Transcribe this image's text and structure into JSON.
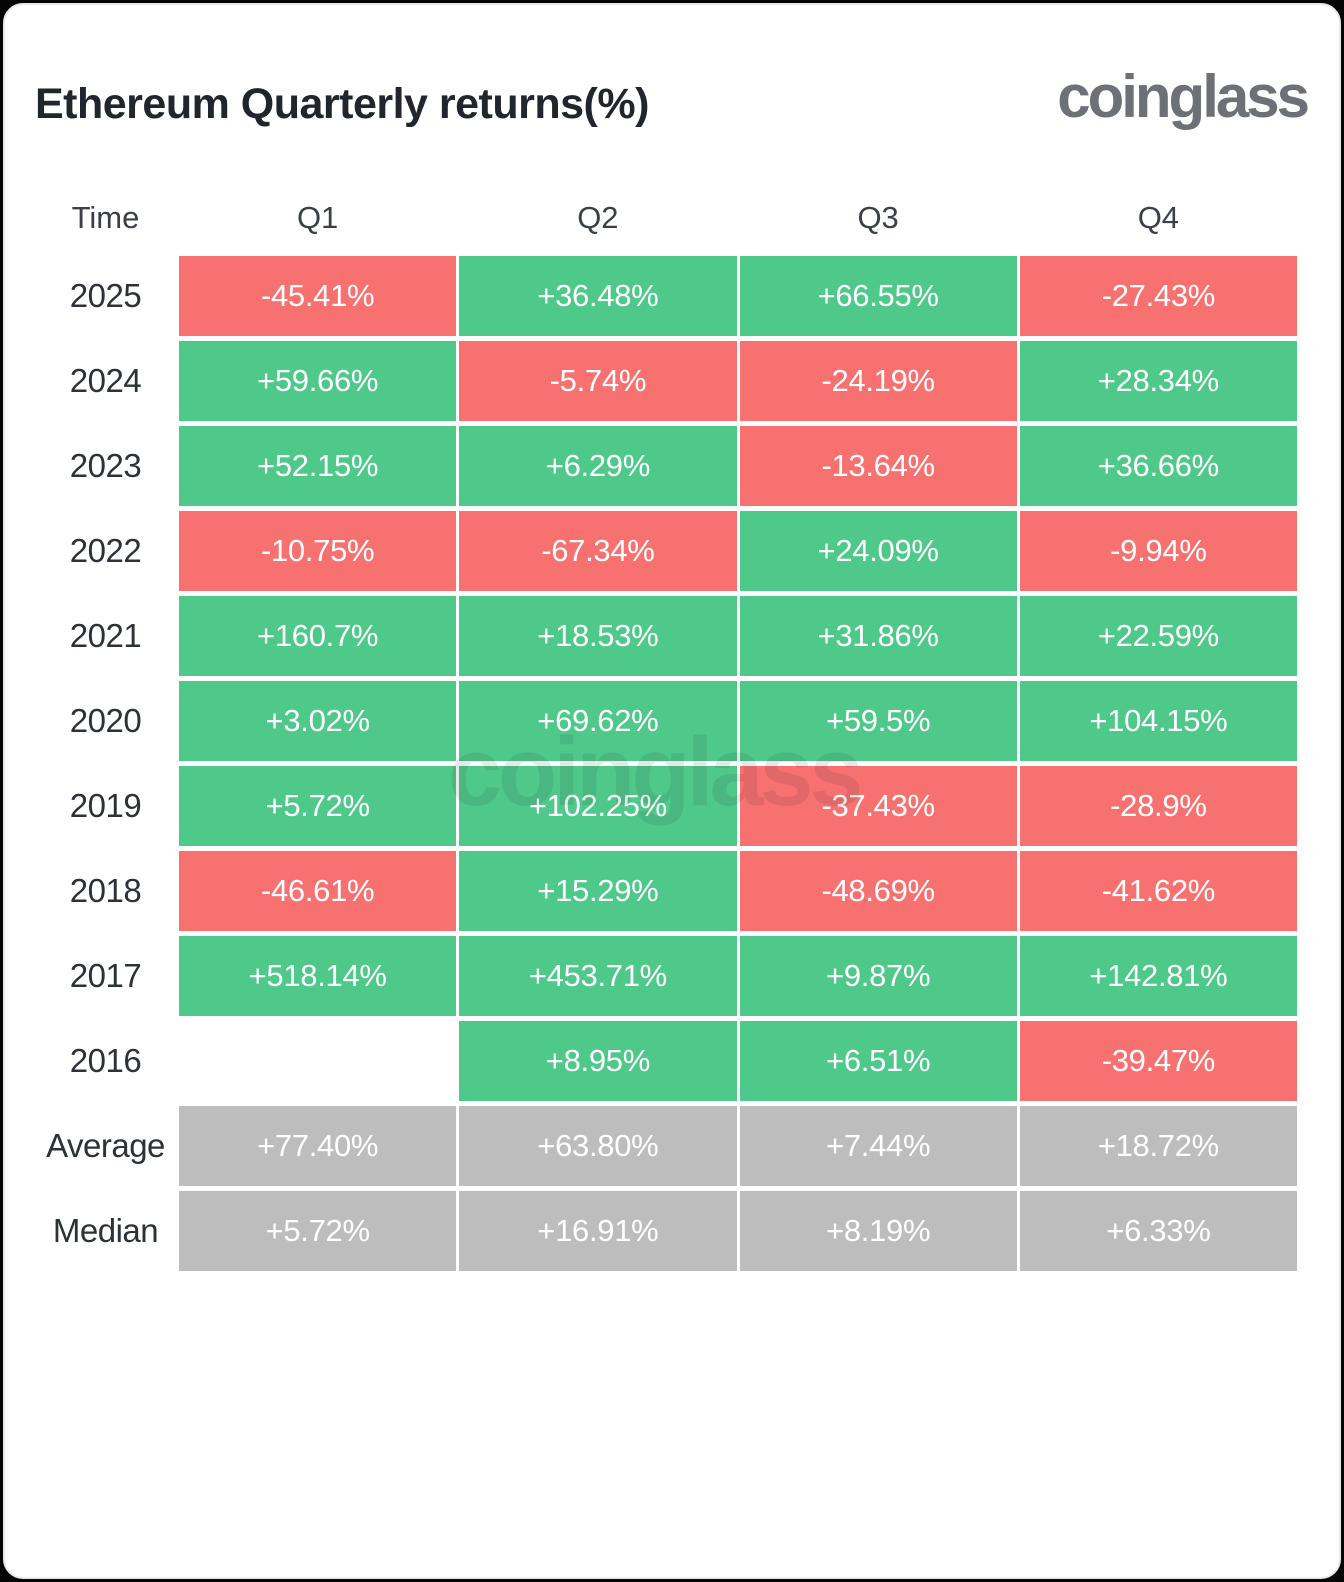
{
  "header": {
    "title": "Ethereum Quarterly returns(%)",
    "logo": "coinglass"
  },
  "watermark": "coinglass",
  "colors": {
    "pos": "#4fc98a",
    "neg": "#f77170",
    "stat": "#bdbdbd",
    "title_text": "#21262e",
    "logo_text": "#6d7177",
    "cell_text": "#ffffff"
  },
  "table": {
    "columns": [
      "Time",
      "Q1",
      "Q2",
      "Q3",
      "Q4"
    ],
    "rows": [
      {
        "label": "2025",
        "cells": [
          {
            "text": "-45.41%",
            "type": "neg"
          },
          {
            "text": "+36.48%",
            "type": "pos"
          },
          {
            "text": "+66.55%",
            "type": "pos"
          },
          {
            "text": "-27.43%",
            "type": "neg"
          }
        ]
      },
      {
        "label": "2024",
        "cells": [
          {
            "text": "+59.66%",
            "type": "pos"
          },
          {
            "text": "-5.74%",
            "type": "neg"
          },
          {
            "text": "-24.19%",
            "type": "neg"
          },
          {
            "text": "+28.34%",
            "type": "pos"
          }
        ]
      },
      {
        "label": "2023",
        "cells": [
          {
            "text": "+52.15%",
            "type": "pos"
          },
          {
            "text": "+6.29%",
            "type": "pos"
          },
          {
            "text": "-13.64%",
            "type": "neg"
          },
          {
            "text": "+36.66%",
            "type": "pos"
          }
        ]
      },
      {
        "label": "2022",
        "cells": [
          {
            "text": "-10.75%",
            "type": "neg"
          },
          {
            "text": "-67.34%",
            "type": "neg"
          },
          {
            "text": "+24.09%",
            "type": "pos"
          },
          {
            "text": "-9.94%",
            "type": "neg"
          }
        ]
      },
      {
        "label": "2021",
        "cells": [
          {
            "text": "+160.7%",
            "type": "pos"
          },
          {
            "text": "+18.53%",
            "type": "pos"
          },
          {
            "text": "+31.86%",
            "type": "pos"
          },
          {
            "text": "+22.59%",
            "type": "pos"
          }
        ]
      },
      {
        "label": "2020",
        "cells": [
          {
            "text": "+3.02%",
            "type": "pos"
          },
          {
            "text": "+69.62%",
            "type": "pos"
          },
          {
            "text": "+59.5%",
            "type": "pos"
          },
          {
            "text": "+104.15%",
            "type": "pos"
          }
        ]
      },
      {
        "label": "2019",
        "cells": [
          {
            "text": "+5.72%",
            "type": "pos"
          },
          {
            "text": "+102.25%",
            "type": "pos"
          },
          {
            "text": "-37.43%",
            "type": "neg"
          },
          {
            "text": "-28.9%",
            "type": "neg"
          }
        ]
      },
      {
        "label": "2018",
        "cells": [
          {
            "text": "-46.61%",
            "type": "neg"
          },
          {
            "text": "+15.29%",
            "type": "pos"
          },
          {
            "text": "-48.69%",
            "type": "neg"
          },
          {
            "text": "-41.62%",
            "type": "neg"
          }
        ]
      },
      {
        "label": "2017",
        "cells": [
          {
            "text": "+518.14%",
            "type": "pos"
          },
          {
            "text": "+453.71%",
            "type": "pos"
          },
          {
            "text": "+9.87%",
            "type": "pos"
          },
          {
            "text": "+142.81%",
            "type": "pos"
          }
        ]
      },
      {
        "label": "2016",
        "cells": [
          {
            "text": "",
            "type": "empty"
          },
          {
            "text": "+8.95%",
            "type": "pos"
          },
          {
            "text": "+6.51%",
            "type": "pos"
          },
          {
            "text": "-39.47%",
            "type": "neg"
          }
        ]
      },
      {
        "label": "Average",
        "cells": [
          {
            "text": "+77.40%",
            "type": "stat"
          },
          {
            "text": "+63.80%",
            "type": "stat"
          },
          {
            "text": "+7.44%",
            "type": "stat"
          },
          {
            "text": "+18.72%",
            "type": "stat"
          }
        ]
      },
      {
        "label": "Median",
        "cells": [
          {
            "text": "+5.72%",
            "type": "stat"
          },
          {
            "text": "+16.91%",
            "type": "stat"
          },
          {
            "text": "+8.19%",
            "type": "stat"
          },
          {
            "text": "+6.33%",
            "type": "stat"
          }
        ]
      }
    ]
  },
  "chart_data": {
    "type": "heatmap",
    "title": "Ethereum Quarterly returns(%)",
    "columns": [
      "Q1",
      "Q2",
      "Q3",
      "Q4"
    ],
    "rows": [
      "2025",
      "2024",
      "2023",
      "2022",
      "2021",
      "2020",
      "2019",
      "2018",
      "2017",
      "2016",
      "Average",
      "Median"
    ],
    "values": [
      [
        -45.41,
        36.48,
        66.55,
        -27.43
      ],
      [
        59.66,
        -5.74,
        -24.19,
        28.34
      ],
      [
        52.15,
        6.29,
        -13.64,
        36.66
      ],
      [
        -10.75,
        -67.34,
        24.09,
        -9.94
      ],
      [
        160.7,
        18.53,
        31.86,
        22.59
      ],
      [
        3.02,
        69.62,
        59.5,
        104.15
      ],
      [
        5.72,
        102.25,
        -37.43,
        -28.9
      ],
      [
        -46.61,
        15.29,
        -48.69,
        -41.62
      ],
      [
        518.14,
        453.71,
        9.87,
        142.81
      ],
      [
        null,
        8.95,
        6.51,
        -39.47
      ],
      [
        77.4,
        63.8,
        7.44,
        18.72
      ],
      [
        5.72,
        16.91,
        8.19,
        6.33
      ]
    ],
    "legend": "green = positive quarter, red = negative quarter, gray = summary statistic",
    "units": "%"
  }
}
